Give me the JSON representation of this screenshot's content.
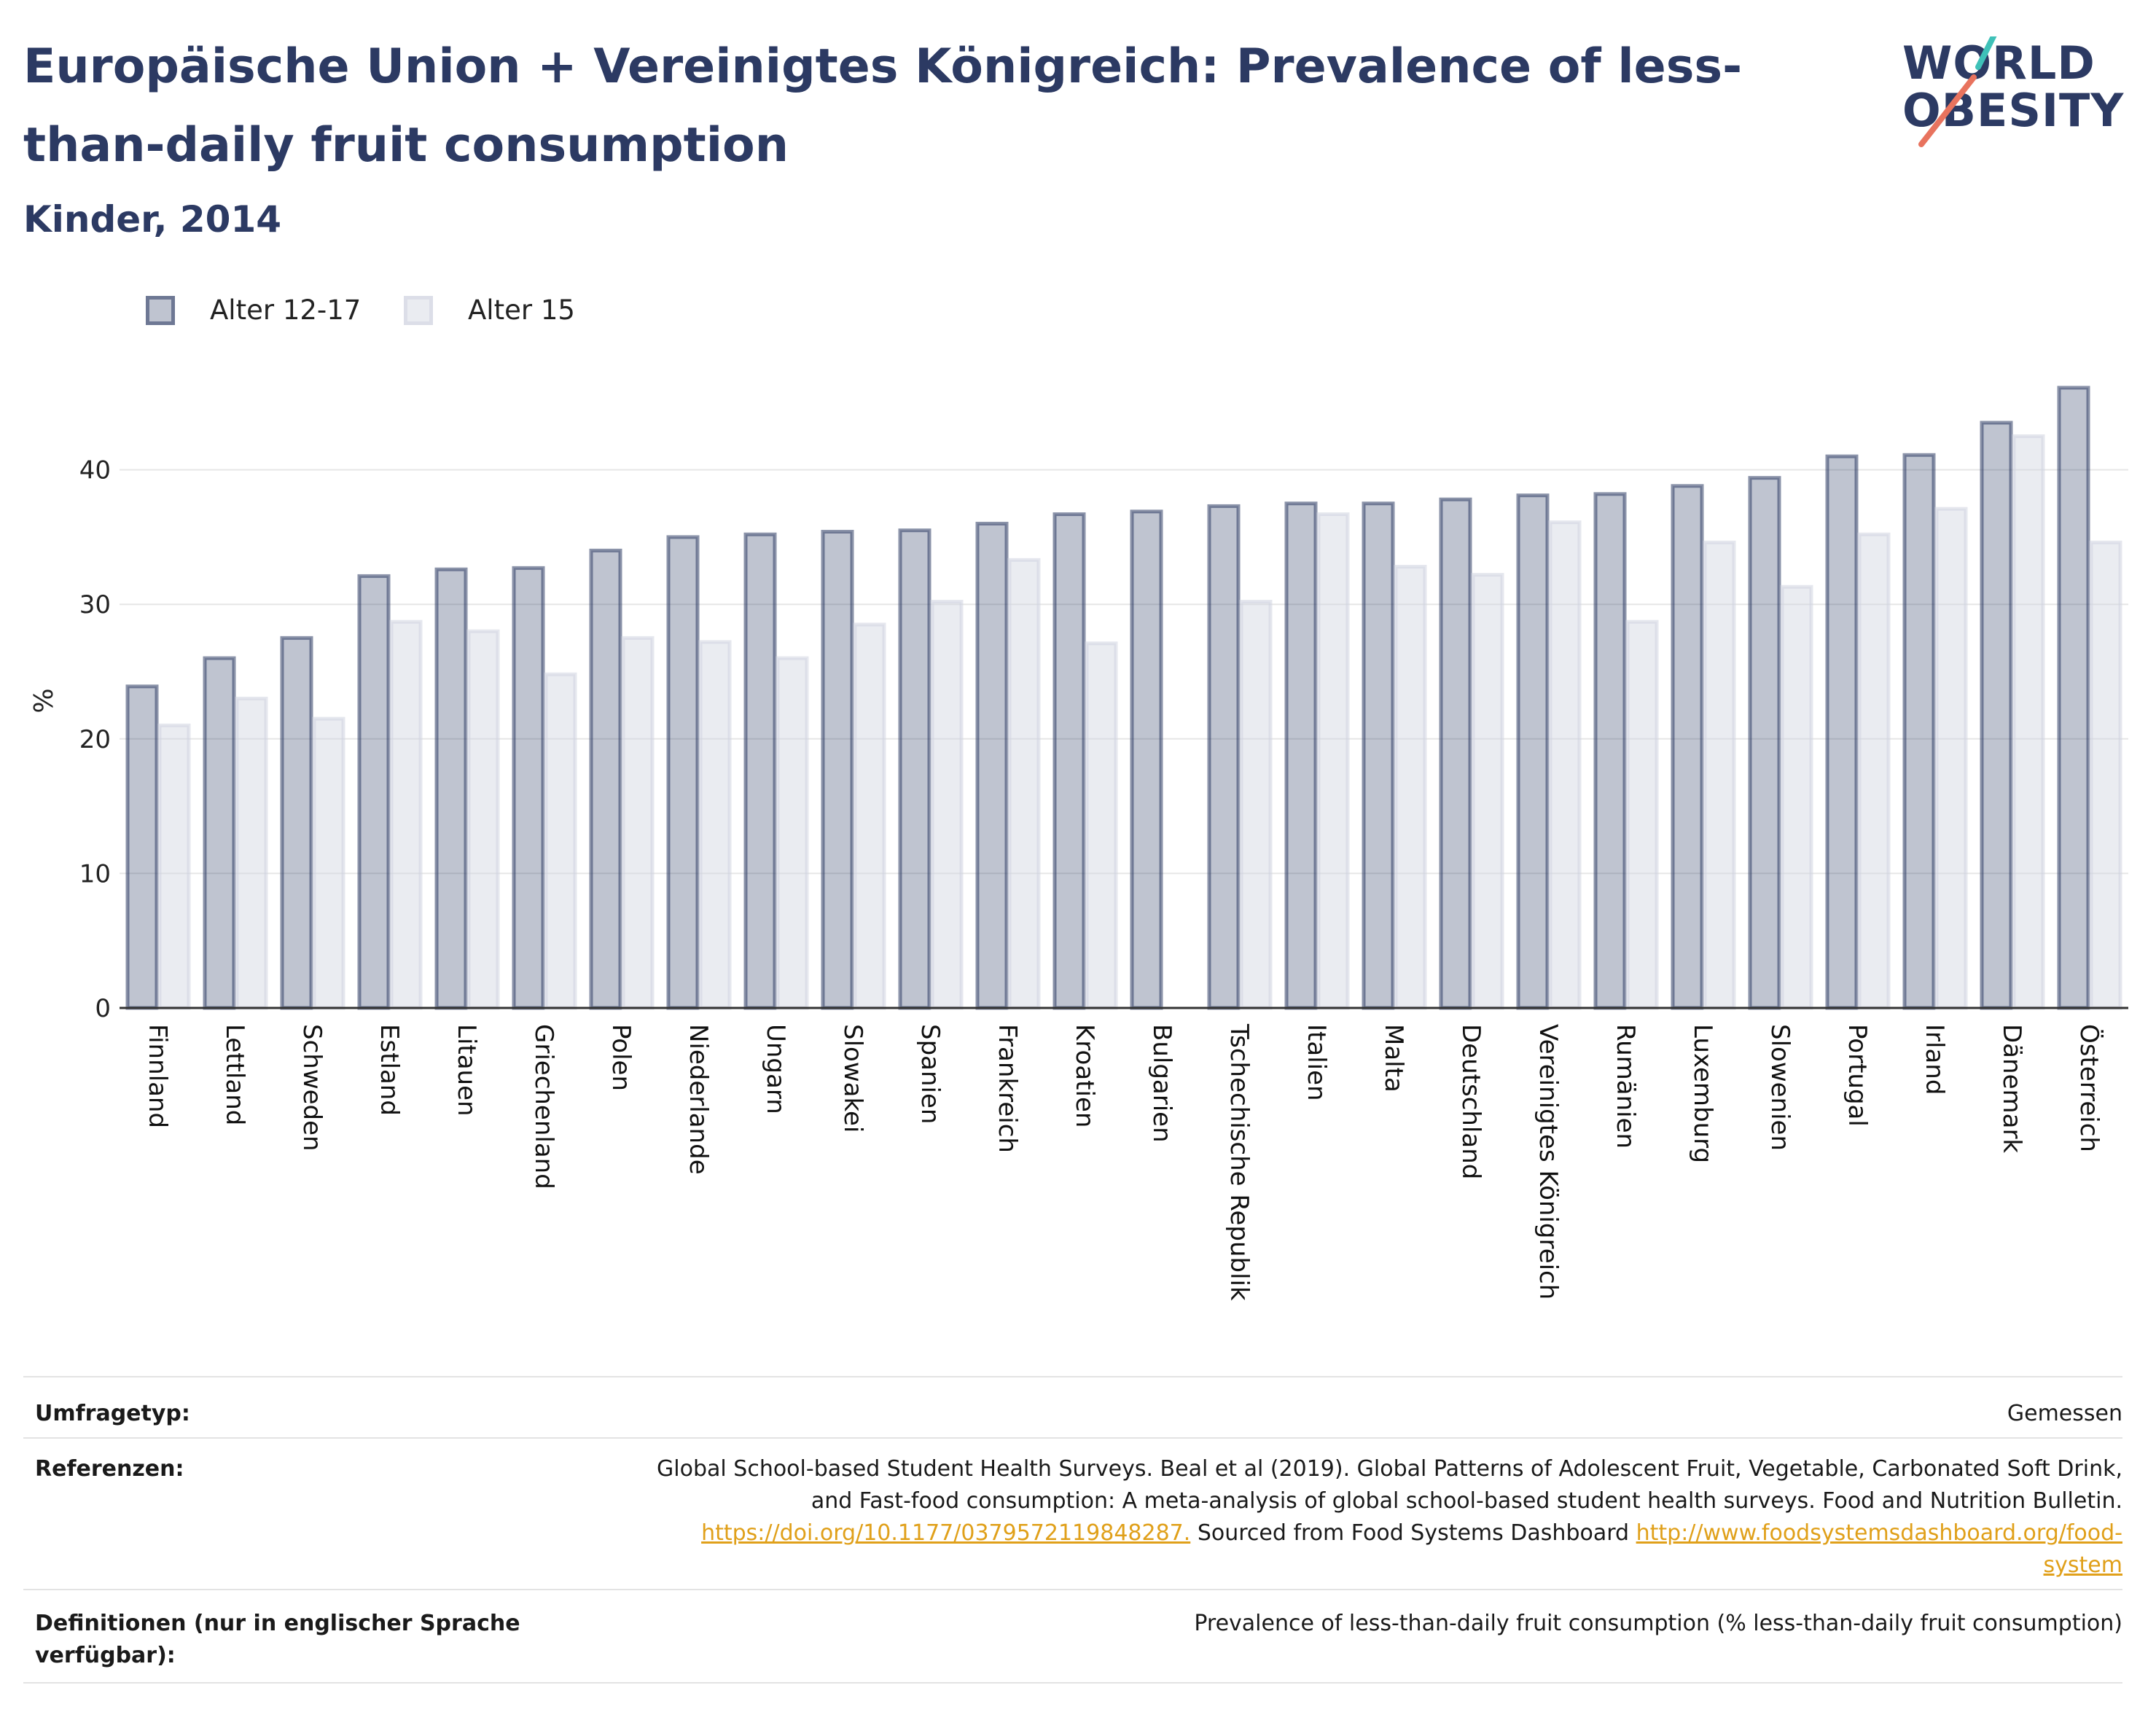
{
  "header": {
    "title": "Europäische Union + Vereinigtes Königreich: Prevalence of less-than-daily fruit consumption",
    "subtitle": "Kinder, 2014"
  },
  "logo": {
    "line1": "WORLD",
    "line2": "OBESITY",
    "accent_colors": [
      "#3fc1b8",
      "#e8735e"
    ]
  },
  "colors": {
    "series1": "#2c3a63",
    "series2": "#d0d4e0",
    "grid": "#e6e6e6",
    "axis": "#333333"
  },
  "chart_data": {
    "type": "bar",
    "ylabel": "%",
    "xlabel": "",
    "ylim": [
      0,
      50
    ],
    "yticks": [
      0,
      10,
      20,
      30,
      40
    ],
    "grid": true,
    "legend_position": "top-left",
    "categories": [
      "Finnland",
      "Lettland",
      "Schweden",
      "Estland",
      "Litauen",
      "Griechenland",
      "Polen",
      "Niederlande",
      "Ungarn",
      "Slowakei",
      "Spanien",
      "Frankreich",
      "Kroatien",
      "Bulgarien",
      "Tschechische Republik",
      "Italien",
      "Malta",
      "Deutschland",
      "Vereinigtes Königreich",
      "Rumänien",
      "Luxemburg",
      "Slowenien",
      "Portugal",
      "Irland",
      "Dänemark",
      "Österreich"
    ],
    "series": [
      {
        "name": "Alter 12-17",
        "values": [
          23.9,
          26.0,
          27.5,
          32.1,
          32.6,
          32.7,
          34.0,
          35.0,
          35.2,
          35.4,
          35.5,
          36.0,
          36.7,
          36.9,
          37.3,
          37.5,
          37.5,
          37.8,
          38.1,
          38.2,
          38.8,
          39.4,
          41.0,
          41.1,
          43.5,
          46.1
        ]
      },
      {
        "name": "Alter 15",
        "values": [
          21.0,
          23.0,
          21.5,
          28.7,
          28.0,
          24.8,
          27.5,
          27.2,
          26.0,
          28.5,
          30.2,
          33.3,
          27.1,
          null,
          30.2,
          36.7,
          32.8,
          32.2,
          36.1,
          28.7,
          34.6,
          31.3,
          35.2,
          37.1,
          42.5,
          34.6
        ]
      }
    ]
  },
  "meta": {
    "survey_label": "Umfragetyp:",
    "survey_value": "Gemessen",
    "references_label": "Referenzen:",
    "references_lines": [
      "Global School-based Student Health Surveys. Beal et al (2019). Global Patterns of Adolescent Fruit, Vegetable, Carbonated Soft Drink,",
      "and Fast-food consumption: A meta-analysis of global school-based student health surveys. Food and Nutrition Bulletin."
    ],
    "references_link1": "https://doi.org/10.1177/0379572119848287.",
    "references_mid": " Sourced from Food Systems Dashboard ",
    "references_link2a": "http://www.foodsystemsdashboard.org/food-",
    "references_link2b": "system",
    "definitions_label_line1": "Definitionen (nur in englischer Sprache",
    "definitions_label_line2": "verfügbar):",
    "definitions_value": "Prevalence of less-than-daily fruit consumption (% less-than-daily fruit consumption)"
  }
}
